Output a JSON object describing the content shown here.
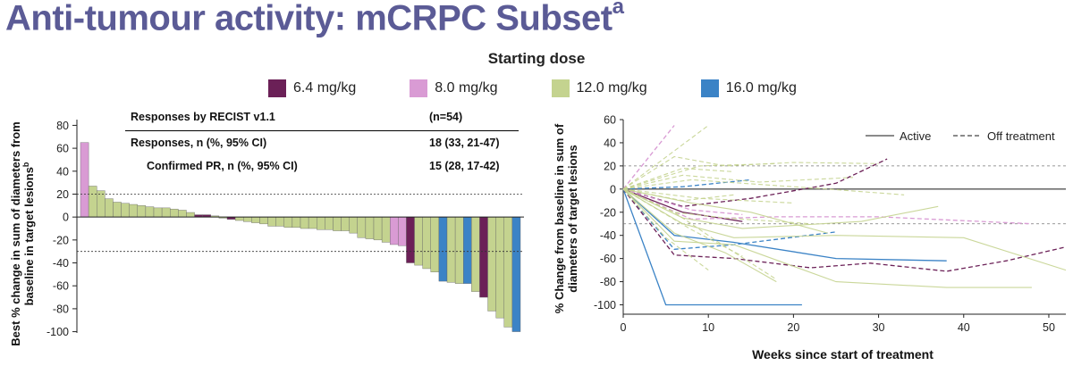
{
  "title": {
    "text": "Anti-tumour activity: mCRPC Subset",
    "superscript": "a"
  },
  "subtitle": "Starting dose",
  "legend": [
    {
      "label": "6.4 mg/kg",
      "color": "#6b2057"
    },
    {
      "label": "8.0 mg/kg",
      "color": "#d99bd4"
    },
    {
      "label": "12.0 mg/kg",
      "color": "#c4d38f"
    },
    {
      "label": "16.0 mg/kg",
      "color": "#3b83c6"
    }
  ],
  "response_table": {
    "header": {
      "label": "Responses by RECIST v1.1",
      "value": "(n=54)"
    },
    "rows": [
      {
        "label": "Responses, n (%, 95% CI)",
        "value": "18 (33, 21-47)"
      },
      {
        "label": "Confirmed PR, n (%, 95% CI)",
        "value": "15 (28, 17-42)"
      }
    ]
  },
  "chart_data": [
    {
      "type": "bar",
      "subtype": "waterfall",
      "ylabel_lines": [
        "Best % change in sum of diameters from",
        "baseline in target lesions"
      ],
      "ylabel_superscript": "b",
      "xlabel": "",
      "ylim": [
        -105,
        85
      ],
      "yticks": [
        80,
        60,
        40,
        20,
        0,
        -20,
        -40,
        -60,
        -80,
        -100
      ],
      "reference_lines": [
        20,
        -30
      ],
      "series_order": [
        "8.0 mg/kg",
        "12.0 mg/kg",
        "12.0 mg/kg",
        "12.0 mg/kg",
        "12.0 mg/kg",
        "12.0 mg/kg",
        "12.0 mg/kg",
        "12.0 mg/kg",
        "12.0 mg/kg",
        "12.0 mg/kg",
        "12.0 mg/kg",
        "12.0 mg/kg",
        "12.0 mg/kg",
        "12.0 mg/kg",
        "6.4 mg/kg",
        "6.4 mg/kg",
        "12.0 mg/kg",
        "12.0 mg/kg",
        "6.4 mg/kg",
        "12.0 mg/kg",
        "12.0 mg/kg",
        "12.0 mg/kg",
        "12.0 mg/kg",
        "12.0 mg/kg",
        "12.0 mg/kg",
        "12.0 mg/kg",
        "12.0 mg/kg",
        "12.0 mg/kg",
        "12.0 mg/kg",
        "12.0 mg/kg",
        "12.0 mg/kg",
        "12.0 mg/kg",
        "12.0 mg/kg",
        "12.0 mg/kg",
        "12.0 mg/kg",
        "12.0 mg/kg",
        "12.0 mg/kg",
        "12.0 mg/kg",
        "8.0 mg/kg",
        "8.0 mg/kg",
        "6.4 mg/kg",
        "12.0 mg/kg",
        "12.0 mg/kg",
        "12.0 mg/kg",
        "16.0 mg/kg",
        "12.0 mg/kg",
        "12.0 mg/kg",
        "16.0 mg/kg",
        "12.0 mg/kg",
        "6.4 mg/kg",
        "12.0 mg/kg",
        "12.0 mg/kg",
        "12.0 mg/kg",
        "16.0 mg/kg"
      ],
      "values": [
        65,
        27,
        23,
        16,
        13,
        12,
        11,
        10,
        9,
        8,
        8,
        7,
        6,
        4,
        2,
        2,
        1,
        -1,
        -2,
        -3,
        -4,
        -5,
        -6,
        -8,
        -8,
        -9,
        -9,
        -10,
        -10,
        -11,
        -11,
        -12,
        -12,
        -14,
        -18,
        -19,
        -20,
        -22,
        -24,
        -25,
        -40,
        -42,
        -45,
        -48,
        -56,
        -57,
        -58,
        -58,
        -65,
        -70,
        -82,
        -88,
        -96,
        -100
      ]
    },
    {
      "type": "line",
      "subtype": "spider",
      "ylabel_lines": [
        "% Change from baseline in sum of",
        "diameters of target lesions"
      ],
      "xlabel": "Weeks since start of treatment",
      "xlim": [
        0,
        52
      ],
      "ylim": [
        -105,
        60
      ],
      "xticks": [
        0,
        10,
        20,
        30,
        40,
        50
      ],
      "yticks": [
        60,
        40,
        20,
        0,
        -20,
        -40,
        -60,
        -80,
        -100
      ],
      "reference_lines": [
        20,
        0,
        -30
      ],
      "line_legend": [
        {
          "label": "Active",
          "style": "solid"
        },
        {
          "label": "Off treatment",
          "style": "dashed"
        }
      ],
      "series": [
        {
          "dose": "16.0 mg/kg",
          "style": "solid",
          "x": [
            0,
            5,
            21
          ],
          "y": [
            0,
            -100,
            -100
          ]
        },
        {
          "dose": "16.0 mg/kg",
          "style": "solid",
          "x": [
            0,
            6,
            13,
            25,
            38
          ],
          "y": [
            0,
            -40,
            -46,
            -60,
            -62
          ]
        },
        {
          "dose": "16.0 mg/kg",
          "style": "dashed",
          "x": [
            0,
            6,
            13,
            25
          ],
          "y": [
            0,
            -52,
            -48,
            -37
          ]
        },
        {
          "dose": "16.0 mg/kg",
          "style": "dashed",
          "x": [
            0,
            7,
            15
          ],
          "y": [
            0,
            2,
            8
          ]
        },
        {
          "dose": "6.4 mg/kg",
          "style": "dashed",
          "x": [
            0,
            6,
            13,
            22,
            29,
            38,
            45,
            52
          ],
          "y": [
            0,
            -57,
            -60,
            -68,
            -64,
            -71,
            -62,
            -50
          ]
        },
        {
          "dose": "6.4 mg/kg",
          "style": "dashed",
          "x": [
            0,
            7,
            15,
            25,
            31
          ],
          "y": [
            0,
            -15,
            -8,
            5,
            26
          ]
        },
        {
          "dose": "6.4 mg/kg",
          "style": "solid",
          "x": [
            0,
            7,
            14
          ],
          "y": [
            0,
            -20,
            -28
          ]
        },
        {
          "dose": "8.0 mg/kg",
          "style": "dashed",
          "x": [
            0,
            6
          ],
          "y": [
            0,
            55
          ]
        },
        {
          "dose": "8.0 mg/kg",
          "style": "dashed",
          "x": [
            0,
            8,
            18,
            30,
            48
          ],
          "y": [
            0,
            -26,
            -24,
            -24,
            -30
          ]
        },
        {
          "dose": "8.0 mg/kg",
          "style": "dashed",
          "x": [
            0,
            8,
            14
          ],
          "y": [
            0,
            -18,
            -22
          ]
        },
        {
          "dose": "12.0 mg/kg",
          "style": "solid",
          "x": [
            0,
            6,
            13,
            25,
            38,
            48
          ],
          "y": [
            0,
            -45,
            -48,
            -80,
            -85,
            -85
          ]
        },
        {
          "dose": "12.0 mg/kg",
          "style": "solid",
          "x": [
            0,
            7,
            13,
            25,
            40,
            52
          ],
          "y": [
            0,
            -30,
            -42,
            -40,
            -42,
            -70
          ]
        },
        {
          "dose": "12.0 mg/kg",
          "style": "solid",
          "x": [
            0,
            7,
            14,
            28,
            37
          ],
          "y": [
            0,
            -25,
            -34,
            -28,
            -15
          ]
        },
        {
          "dose": "12.0 mg/kg",
          "style": "solid",
          "x": [
            0,
            6,
            12,
            18
          ],
          "y": [
            0,
            -38,
            -55,
            -80
          ]
        },
        {
          "dose": "12.0 mg/kg",
          "style": "solid",
          "x": [
            0,
            8,
            15,
            24
          ],
          "y": [
            0,
            -12,
            -20,
            -38
          ]
        },
        {
          "dose": "12.0 mg/kg",
          "style": "dashed",
          "x": [
            0,
            10
          ],
          "y": [
            0,
            55
          ]
        },
        {
          "dose": "12.0 mg/kg",
          "style": "dashed",
          "x": [
            0,
            6,
            12,
            20,
            30
          ],
          "y": [
            0,
            28,
            20,
            23,
            22
          ]
        },
        {
          "dose": "12.0 mg/kg",
          "style": "dashed",
          "x": [
            0,
            9,
            18
          ],
          "y": [
            0,
            20,
            22
          ]
        },
        {
          "dose": "12.0 mg/kg",
          "style": "dashed",
          "x": [
            0,
            7,
            16,
            27
          ],
          "y": [
            0,
            12,
            6,
            10
          ]
        },
        {
          "dose": "12.0 mg/kg",
          "style": "dashed",
          "x": [
            0,
            8,
            16,
            24,
            33
          ],
          "y": [
            0,
            8,
            4,
            0,
            -5
          ]
        },
        {
          "dose": "12.0 mg/kg",
          "style": "dashed",
          "x": [
            0,
            7,
            13
          ],
          "y": [
            0,
            -10,
            -5
          ]
        },
        {
          "dose": "12.0 mg/kg",
          "style": "dashed",
          "x": [
            0,
            6,
            12,
            22
          ],
          "y": [
            0,
            -20,
            -25,
            -30
          ]
        },
        {
          "dose": "12.0 mg/kg",
          "style": "dashed",
          "x": [
            0,
            8,
            14
          ],
          "y": [
            0,
            -35,
            -58
          ]
        },
        {
          "dose": "12.0 mg/kg",
          "style": "dashed",
          "x": [
            0,
            5,
            10
          ],
          "y": [
            0,
            -42,
            -70
          ]
        },
        {
          "dose": "12.0 mg/kg",
          "style": "dashed",
          "x": [
            0,
            6,
            11,
            18
          ],
          "y": [
            0,
            -20,
            -45,
            -78
          ]
        },
        {
          "dose": "12.0 mg/kg",
          "style": "dashed",
          "x": [
            0,
            7,
            13
          ],
          "y": [
            0,
            18,
            15
          ]
        },
        {
          "dose": "12.0 mg/kg",
          "style": "dashed",
          "x": [
            0,
            9,
            20
          ],
          "y": [
            0,
            -8,
            -12
          ]
        }
      ]
    }
  ]
}
